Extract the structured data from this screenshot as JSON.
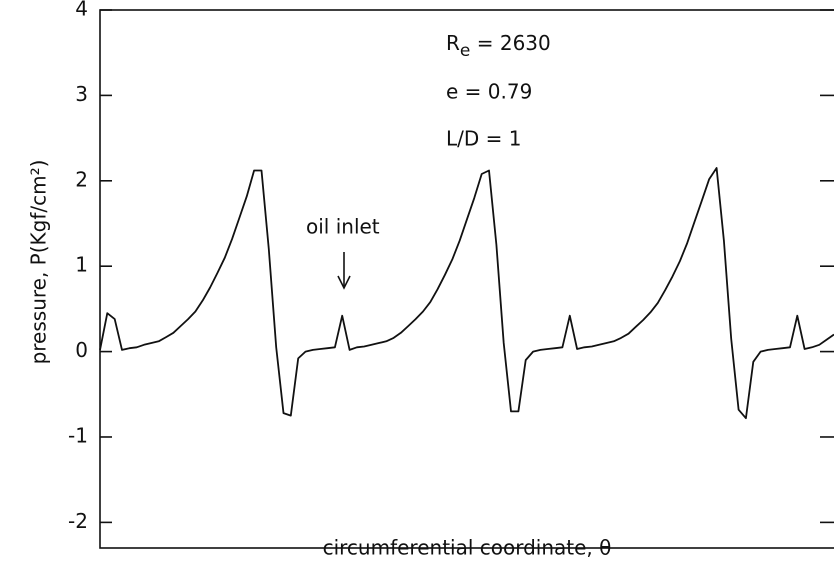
{
  "chart_data": {
    "type": "line",
    "xlabel": "circumferential coordinate,  θ",
    "ylabel": "pressure,  P(Kgf/cm²)",
    "ylim": [
      -2.3,
      4
    ],
    "yticks": [
      -2,
      -1,
      0,
      1,
      2,
      3,
      4
    ],
    "color": "#111111",
    "annotations": [
      {
        "symbol": "R",
        "subscript": "e",
        "text": " = 2630"
      },
      {
        "text": "e = 0.79"
      },
      {
        "text": "L/D = 1"
      },
      {
        "text": "oil inlet"
      }
    ],
    "values": [
      0.02,
      0.45,
      0.38,
      0.02,
      0.04,
      0.05,
      0.08,
      0.1,
      0.12,
      0.17,
      0.22,
      0.3,
      0.38,
      0.47,
      0.6,
      0.75,
      0.92,
      1.1,
      1.32,
      1.57,
      1.82,
      2.12,
      2.12,
      1.2,
      0.05,
      -0.72,
      -0.75,
      -0.08,
      0.0,
      0.02,
      0.03,
      0.04,
      0.05,
      0.42,
      0.02,
      0.05,
      0.06,
      0.08,
      0.1,
      0.12,
      0.16,
      0.22,
      0.3,
      0.38,
      0.47,
      0.58,
      0.73,
      0.9,
      1.08,
      1.3,
      1.55,
      1.8,
      2.08,
      2.12,
      1.25,
      0.1,
      -0.7,
      -0.7,
      -0.1,
      0.0,
      0.02,
      0.03,
      0.04,
      0.05,
      0.42,
      0.03,
      0.05,
      0.06,
      0.08,
      0.1,
      0.12,
      0.16,
      0.21,
      0.29,
      0.37,
      0.46,
      0.57,
      0.72,
      0.88,
      1.06,
      1.27,
      1.52,
      1.77,
      2.02,
      2.15,
      1.3,
      0.15,
      -0.68,
      -0.78,
      -0.12,
      0.0,
      0.02,
      0.03,
      0.04,
      0.05,
      0.42,
      0.03,
      0.05,
      0.08,
      0.14,
      0.2
    ]
  }
}
